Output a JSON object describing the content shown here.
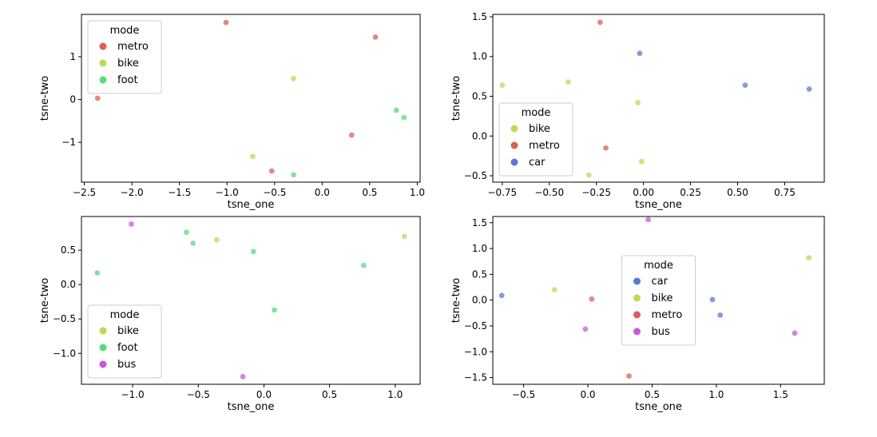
{
  "chart_data": [
    {
      "type": "scatter",
      "xlabel": "tsne_one",
      "ylabel": "tsne-two",
      "legend_title": "mode",
      "legend_loc": "upper left",
      "xlim": [
        -2.53,
        1.03
      ],
      "ylim": [
        -1.93,
        1.99
      ],
      "xticks": [
        {
          "value": -2.5,
          "label": "−2.5"
        },
        {
          "value": -2.0,
          "label": "−2.0"
        },
        {
          "value": -1.5,
          "label": "−1.5"
        },
        {
          "value": -1.0,
          "label": "−1.0"
        },
        {
          "value": -0.5,
          "label": "−0.5"
        },
        {
          "value": 0,
          "label": "0.0"
        },
        {
          "value": 0.5,
          "label": "0.5"
        },
        {
          "value": 1.0,
          "label": "1.0"
        }
      ],
      "yticks": [
        {
          "value": -1,
          "label": "−1"
        },
        0,
        1
      ],
      "series": [
        {
          "name": "metro",
          "color": "#db5f57",
          "x": [
            -1.01,
            0.56,
            -2.36,
            0.31,
            -0.53
          ],
          "y": [
            1.8,
            1.46,
            0.03,
            -0.83,
            -1.67
          ]
        },
        {
          "name": "bike",
          "color": "#b9db57",
          "x": [
            -0.3,
            -0.73
          ],
          "y": [
            0.49,
            -1.33
          ]
        },
        {
          "name": "foot",
          "color": "#57db80",
          "x": [
            0.78,
            0.86,
            -0.3
          ],
          "y": [
            -0.25,
            -0.42,
            -1.76
          ]
        }
      ]
    },
    {
      "type": "scatter",
      "xlabel": "tsne_one",
      "ylabel": "tsne-two",
      "legend_title": "mode",
      "legend_loc": "lower left",
      "xlim": [
        -0.8,
        0.96
      ],
      "ylim": [
        -0.58,
        1.53
      ],
      "xticks": [
        {
          "value": -0.75,
          "label": "−0.75"
        },
        {
          "value": -0.5,
          "label": "−0.50"
        },
        {
          "value": -0.25,
          "label": "−0.25"
        },
        {
          "value": 0,
          "label": "0.00"
        },
        {
          "value": 0.25,
          "label": "0.25"
        },
        {
          "value": 0.5,
          "label": "0.50"
        },
        {
          "value": 0.75,
          "label": "0.75"
        }
      ],
      "yticks": [
        {
          "value": -0.5,
          "label": "−0.5"
        },
        {
          "value": 0,
          "label": "0.0"
        },
        {
          "value": 0.5,
          "label": "0.5"
        },
        {
          "value": 1.0,
          "label": "1.0"
        },
        {
          "value": 1.5,
          "label": "1.5"
        }
      ],
      "series": [
        {
          "name": "bike",
          "color": "#b9db57",
          "x": [
            -0.75,
            -0.4,
            -0.03,
            -0.01,
            -0.29
          ],
          "y": [
            0.64,
            0.68,
            0.42,
            -0.32,
            -0.49
          ]
        },
        {
          "name": "metro",
          "color": "#db5f57",
          "x": [
            -0.23,
            -0.2
          ],
          "y": [
            1.43,
            -0.15
          ]
        },
        {
          "name": "car",
          "color": "#5779db",
          "x": [
            -0.02,
            0.54,
            0.88
          ],
          "y": [
            1.04,
            0.64,
            0.59
          ]
        }
      ]
    },
    {
      "type": "scatter",
      "xlabel": "tsne_one",
      "ylabel": "tsne-two",
      "legend_title": "mode",
      "legend_loc": "lower left",
      "xlim": [
        -1.39,
        1.19
      ],
      "ylim": [
        -1.45,
        0.99
      ],
      "xticks": [
        {
          "value": -1.0,
          "label": "−1.0"
        },
        {
          "value": -0.5,
          "label": "−0.5"
        },
        {
          "value": 0,
          "label": "0.0"
        },
        {
          "value": 0.5,
          "label": "0.5"
        },
        {
          "value": 1.0,
          "label": "1.0"
        }
      ],
      "yticks": [
        {
          "value": -1.0,
          "label": "−1.0"
        },
        {
          "value": -0.5,
          "label": "−0.5"
        },
        {
          "value": 0,
          "label": "0.0"
        },
        {
          "value": 0.5,
          "label": "0.5"
        }
      ],
      "series": [
        {
          "name": "bike",
          "color": "#b9db57",
          "x": [
            -0.36,
            1.07
          ],
          "y": [
            0.65,
            0.7
          ]
        },
        {
          "name": "foot",
          "color": "#57db80",
          "x": [
            -1.27,
            -0.59,
            -0.54,
            -0.08,
            0.76,
            0.08
          ],
          "y": [
            0.17,
            0.76,
            0.6,
            0.48,
            0.28,
            -0.37
          ]
        },
        {
          "name": "bus",
          "color": "#c957db",
          "x": [
            -1.01,
            -0.16
          ],
          "y": [
            0.88,
            -1.34
          ]
        }
      ]
    },
    {
      "type": "scatter",
      "xlabel": "tsne_one",
      "ylabel": "tsne-two",
      "legend_title": "mode",
      "legend_loc": "center",
      "xlim": [
        -0.74,
        1.84
      ],
      "ylim": [
        -1.63,
        1.62
      ],
      "xticks": [
        {
          "value": -0.5,
          "label": "−0.5"
        },
        {
          "value": 0,
          "label": "0.0"
        },
        {
          "value": 0.5,
          "label": "0.5"
        },
        {
          "value": 1.0,
          "label": "1.0"
        },
        {
          "value": 1.5,
          "label": "1.5"
        }
      ],
      "yticks": [
        {
          "value": -1.5,
          "label": "−1.5"
        },
        {
          "value": -1.0,
          "label": "−1.0"
        },
        {
          "value": -0.5,
          "label": "−0.5"
        },
        {
          "value": 0,
          "label": "0.0"
        },
        {
          "value": 0.5,
          "label": "0.5"
        },
        {
          "value": 1.0,
          "label": "1.0"
        },
        {
          "value": 1.5,
          "label": "1.5"
        }
      ],
      "series": [
        {
          "name": "car",
          "color": "#5779db",
          "x": [
            -0.67,
            0.97,
            1.03
          ],
          "y": [
            0.09,
            0.01,
            -0.29
          ]
        },
        {
          "name": "bike",
          "color": "#b9db57",
          "x": [
            -0.26,
            1.72
          ],
          "y": [
            0.2,
            0.82
          ]
        },
        {
          "name": "metro",
          "color": "#db5f57",
          "x": [
            0.03,
            0.32
          ],
          "y": [
            0.02,
            -1.47
          ]
        },
        {
          "name": "bus",
          "color": "#c957db",
          "x": [
            0.47,
            -0.02,
            1.61
          ],
          "y": [
            1.56,
            -0.56,
            -0.64
          ]
        }
      ]
    }
  ]
}
